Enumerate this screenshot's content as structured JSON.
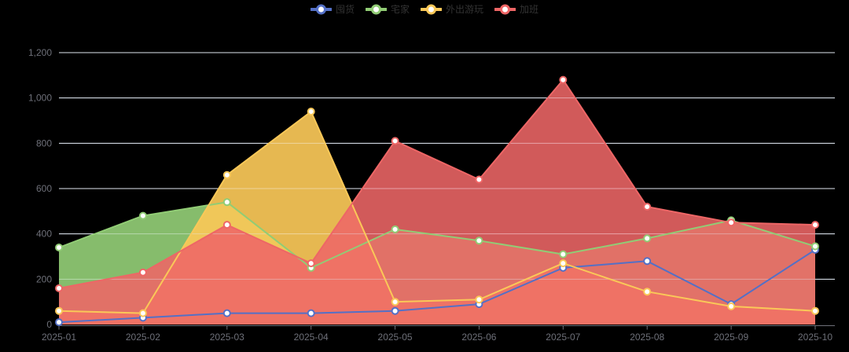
{
  "page": {
    "background": "#000000"
  },
  "legend": {
    "position": "top",
    "text_color": "#333333"
  },
  "chart_data": {
    "type": "area",
    "title": "",
    "xlabel": "",
    "ylabel": "",
    "grid": true,
    "legend_position": "top",
    "categories": [
      "2025-01",
      "2025-02",
      "2025-03",
      "2025-04",
      "2025-05",
      "2025-06",
      "2025-07",
      "2025-08",
      "2025-09",
      "2025-10"
    ],
    "series": [
      {
        "name": "囤货",
        "color": "#5470C6",
        "values": [
          10,
          30,
          50,
          50,
          60,
          90,
          250,
          280,
          90,
          330
        ]
      },
      {
        "name": "宅家",
        "color": "#91CC75",
        "values": [
          340,
          480,
          540,
          250,
          420,
          370,
          310,
          380,
          460,
          345
        ]
      },
      {
        "name": "外出游玩",
        "color": "#FAC858",
        "values": [
          60,
          50,
          660,
          940,
          100,
          110,
          270,
          145,
          80,
          60
        ]
      },
      {
        "name": "加班",
        "color": "#EE6666",
        "values": [
          160,
          230,
          440,
          270,
          810,
          640,
          1080,
          520,
          450,
          440
        ]
      }
    ],
    "area_opacity": [
      0.5,
      0.92,
      0.92,
      0.88
    ],
    "ylim": [
      0,
      1200
    ],
    "ytick_interval": 200,
    "ytick_labels": [
      "0",
      "200",
      "400",
      "600",
      "800",
      "1,000",
      "1,200"
    ],
    "marker_style": "empty-circle",
    "colors": {
      "gridline": "#E0E6F1",
      "axis_line": "#6E7079",
      "axis_label": "#6E7079",
      "legend_text": "#333333",
      "marker_center": "#FFFFFF"
    }
  }
}
